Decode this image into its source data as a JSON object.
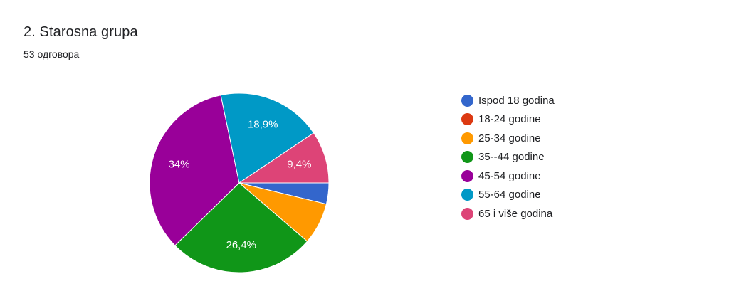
{
  "question": {
    "title": "2. Starosna grupa",
    "responses": "53 одговора"
  },
  "chart_data": {
    "type": "pie",
    "title": "2. Starosna grupa",
    "total_responses": 53,
    "start_angle_deg": 0,
    "slices": [
      {
        "label": "Ispod 18 godina",
        "value": 3.8,
        "color": "#3366cc",
        "data_label": ""
      },
      {
        "label": "18-24 godine",
        "value": 0,
        "color": "#dc3912",
        "data_label": ""
      },
      {
        "label": "25-34 godine",
        "value": 7.5,
        "color": "#ff9900",
        "data_label": ""
      },
      {
        "label": "35--44 godine",
        "value": 26.4,
        "color": "#109618",
        "data_label": "26,4%"
      },
      {
        "label": "45-54 godine",
        "value": 34,
        "color": "#990099",
        "data_label": "34%"
      },
      {
        "label": "55-64 godine",
        "value": 18.9,
        "color": "#0099c6",
        "data_label": "18,9%"
      },
      {
        "label": "65 i više godina",
        "value": 9.4,
        "color": "#dd4477",
        "data_label": "9,4%"
      }
    ],
    "legend_position": "right"
  }
}
